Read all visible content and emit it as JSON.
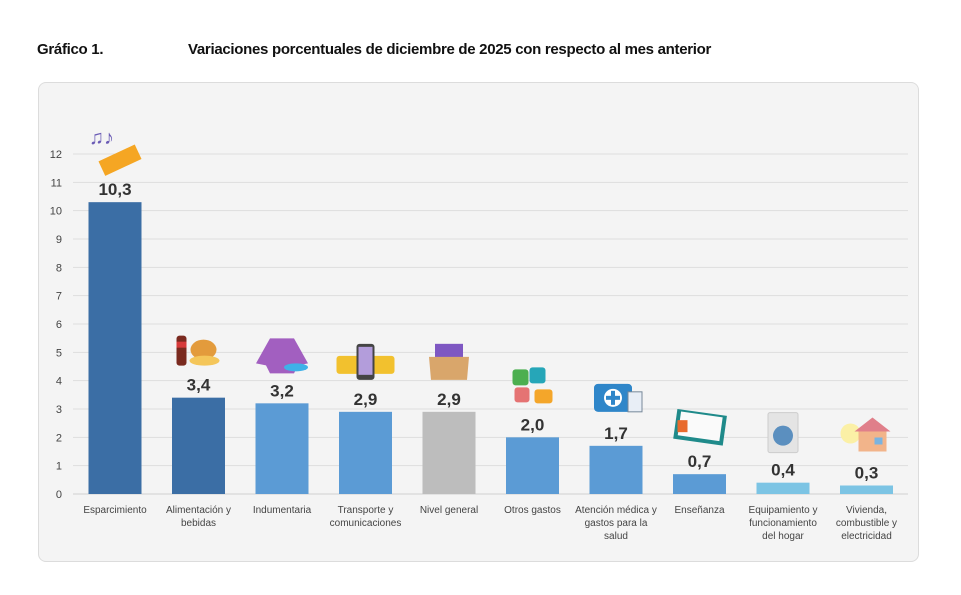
{
  "header": {
    "figure_label": "Gráfico 1.",
    "title": "Variaciones porcentuales de diciembre de 2025 con respecto al mes anterior"
  },
  "chart_data": {
    "type": "bar",
    "title": "Variaciones porcentuales de diciembre de 2025 con respecto al mes anterior",
    "xlabel": "",
    "ylabel": "",
    "ylim": [
      0,
      12
    ],
    "yticks": [
      0,
      1,
      2,
      3,
      4,
      5,
      6,
      7,
      8,
      9,
      10,
      11,
      12
    ],
    "grid": true,
    "categories": [
      "Esparcimiento",
      "Alimentación y bebidas",
      "Indumentaria",
      "Transporte y comunicaciones",
      "Nivel general",
      "Otros gastos",
      "Atención médica y gastos para la salud",
      "Enseñanza",
      "Equipamiento y funcionamiento del hogar",
      "Vivienda, combustible y electricidad"
    ],
    "category_lines": [
      [
        "Esparcimiento"
      ],
      [
        "Alimentación y",
        "bebidas"
      ],
      [
        "Indumentaria"
      ],
      [
        "Transporte y",
        "comunicaciones"
      ],
      [
        "Nivel general"
      ],
      [
        "Otros gastos"
      ],
      [
        "Atención médica y",
        "gastos para la",
        "salud"
      ],
      [
        "Enseñanza"
      ],
      [
        "Equipamiento y",
        "funcionamiento",
        "del hogar"
      ],
      [
        "Vivienda,",
        "combustible y",
        "electricidad"
      ]
    ],
    "values": [
      10.3,
      3.4,
      3.2,
      2.9,
      2.9,
      2.0,
      1.7,
      0.7,
      0.4,
      0.3
    ],
    "data_labels": [
      "10,3",
      "3,4",
      "3,2",
      "2,9",
      "2,9",
      "2,0",
      "1,7",
      "0,7",
      "0,4",
      "0,3"
    ],
    "bar_colors": [
      "#3b6ea5",
      "#3b6ea5",
      "#5b9bd5",
      "#5b9bd5",
      "#bdbdbd",
      "#5b9bd5",
      "#5b9bd5",
      "#5b9bd5",
      "#7cc4e4",
      "#7cc4e4"
    ],
    "icons": [
      "ticket-music-icon",
      "food-drink-icon",
      "clothing-icon",
      "bus-phone-icon",
      "goods-box-icon",
      "puzzle-money-icon",
      "medical-kit-icon",
      "book-icon",
      "washing-machine-icon",
      "house-bulb-icon"
    ]
  }
}
